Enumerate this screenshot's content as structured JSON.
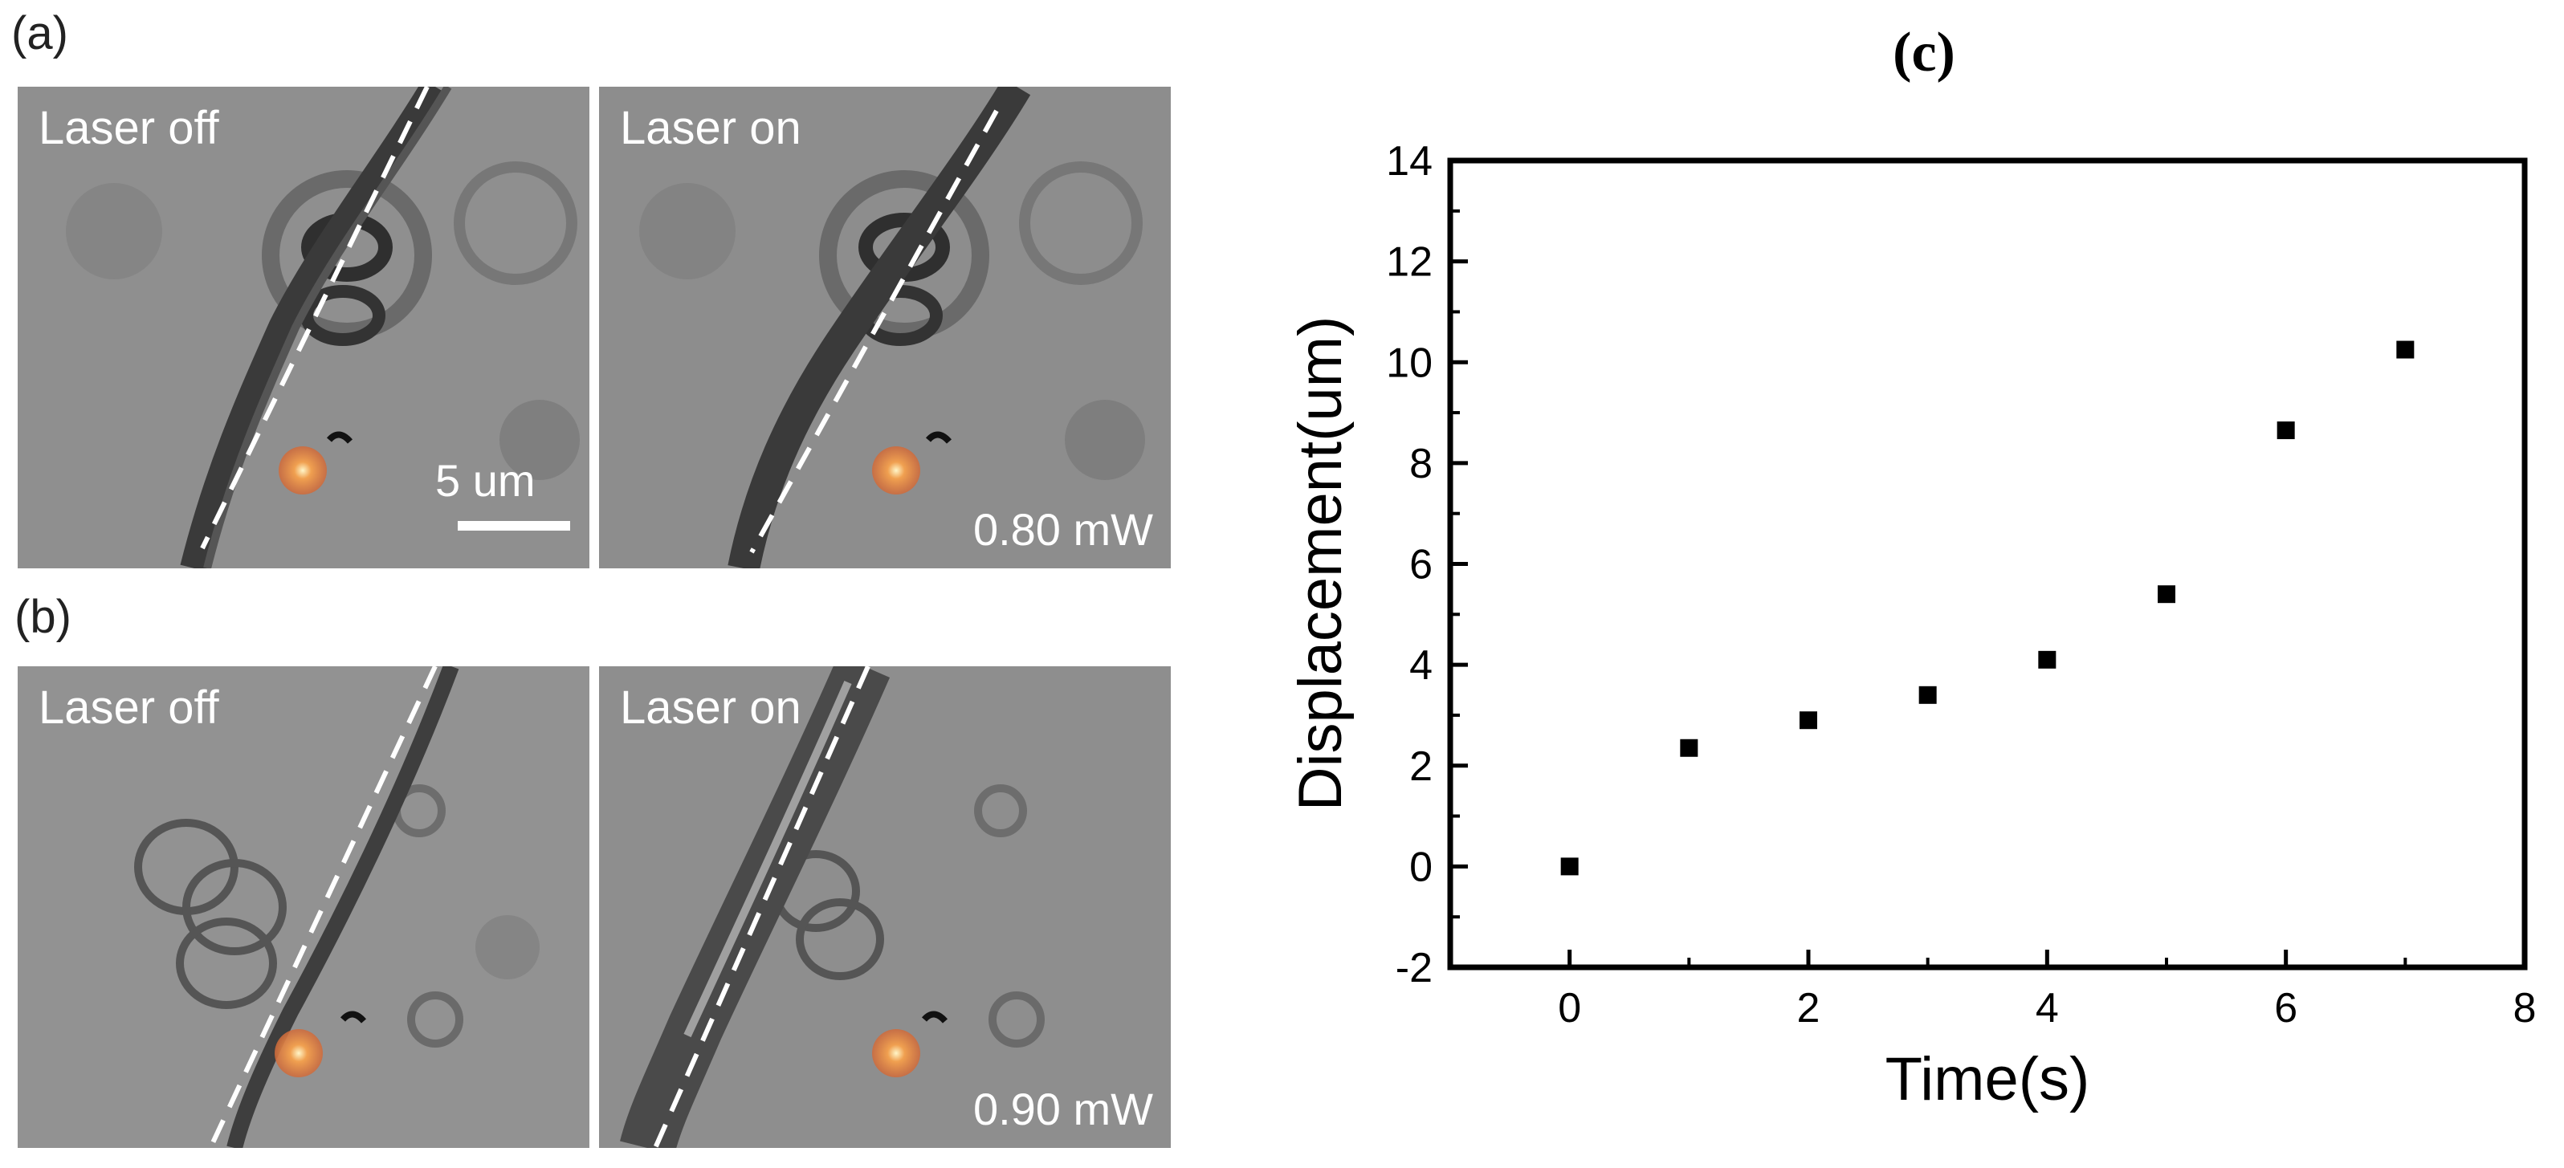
{
  "panels": {
    "a": {
      "label": "(a)",
      "left": {
        "state": "Laser off",
        "scale": "5 um"
      },
      "right": {
        "state": "Laser on",
        "power": "0.80 mW"
      }
    },
    "b": {
      "label": "(b)",
      "left": {
        "state": "Laser off"
      },
      "right": {
        "state": "Laser on",
        "power": "0.90 mW"
      }
    }
  },
  "chart_data": {
    "type": "scatter",
    "panel_label": "(c)",
    "title": "(c)",
    "xlabel": "Time(s)",
    "ylabel": "Displacement(um)",
    "xlim": [
      -1,
      8
    ],
    "ylim": [
      -2,
      14
    ],
    "x_ticks": [
      "0",
      "2",
      "4",
      "6",
      "8"
    ],
    "y_ticks": [
      "-2",
      "0",
      "2",
      "4",
      "6",
      "8",
      "10",
      "12",
      "14"
    ],
    "grid": false,
    "legend": "none",
    "marker": "square",
    "color": "#000000",
    "points": [
      {
        "x": 0,
        "y": 0.0
      },
      {
        "x": 1,
        "y": 2.35
      },
      {
        "x": 2,
        "y": 2.9
      },
      {
        "x": 3,
        "y": 3.4
      },
      {
        "x": 4,
        "y": 4.1
      },
      {
        "x": 5,
        "y": 5.4
      },
      {
        "x": 6,
        "y": 8.65
      },
      {
        "x": 7,
        "y": 10.25
      }
    ]
  }
}
